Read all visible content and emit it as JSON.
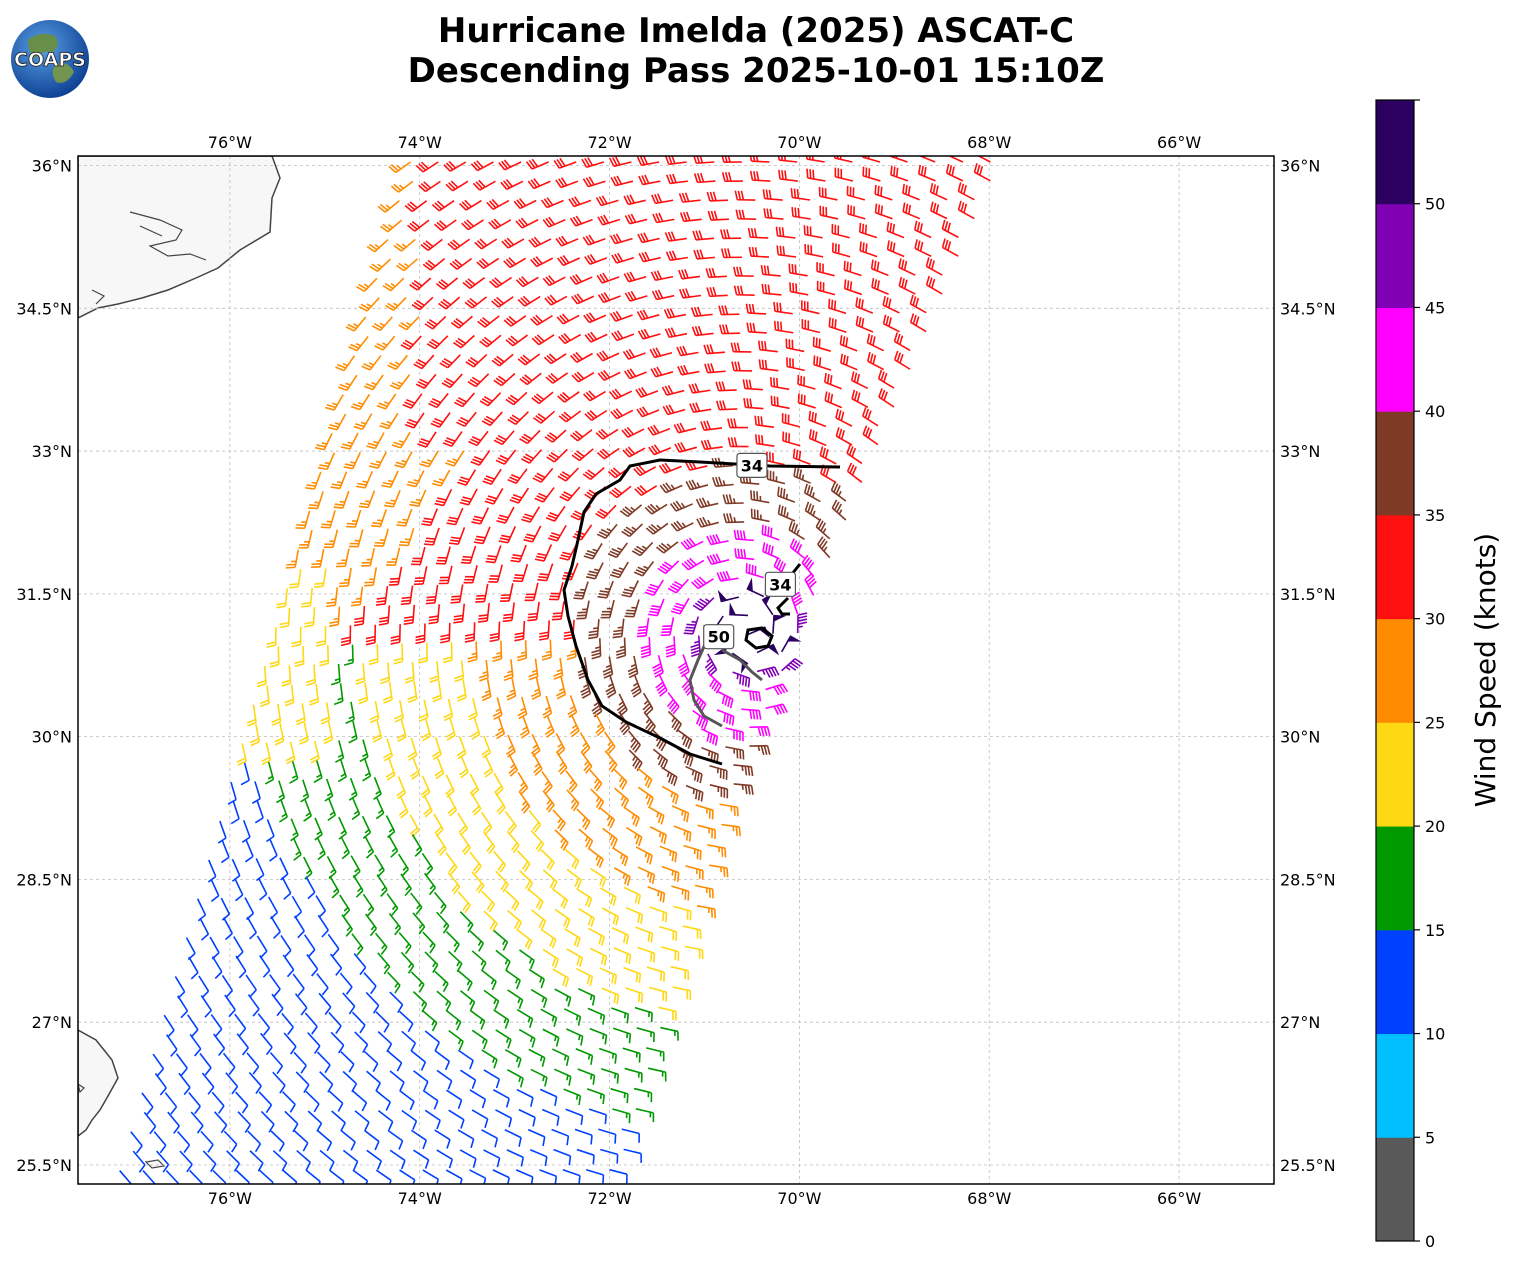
{
  "logo": {
    "text": "COAPS"
  },
  "title": {
    "line1": "Hurricane Imelda (2025) ASCAT-C",
    "line2": "Descending Pass 2025-10-01 15:10Z"
  },
  "map": {
    "lon_range": [
      -77.6,
      -65.0
    ],
    "lat_range": [
      25.3,
      36.1
    ],
    "lon_ticks": [
      {
        "value": -76,
        "label": "76°W"
      },
      {
        "value": -74,
        "label": "74°W"
      },
      {
        "value": -72,
        "label": "72°W"
      },
      {
        "value": -70,
        "label": "70°W"
      },
      {
        "value": -68,
        "label": "68°W"
      },
      {
        "value": -66,
        "label": "66°W"
      }
    ],
    "lat_ticks": [
      {
        "value": 36,
        "label": "36°N"
      },
      {
        "value": 34.5,
        "label": "34.5°N"
      },
      {
        "value": 33,
        "label": "33°N"
      },
      {
        "value": 31.5,
        "label": "31.5°N"
      },
      {
        "value": 30,
        "label": "30°N"
      },
      {
        "value": 28.5,
        "label": "28.5°N"
      },
      {
        "value": 27,
        "label": "27°N"
      },
      {
        "value": 25.5,
        "label": "25.5°N"
      }
    ],
    "grid": true,
    "swath": {
      "corners_lonlat": [
        [
          -74.2,
          36.1
        ],
        [
          -67.8,
          36.1
        ],
        [
          -70.6,
          29.6
        ],
        [
          -71.9,
          25.3
        ],
        [
          -77.3,
          25.3
        ]
      ]
    },
    "storm_center_lonlat": [
      -70.55,
      31.1
    ],
    "contour_labels": [
      {
        "text": "34",
        "lon": -70.5,
        "lat": 32.85
      },
      {
        "text": "34",
        "lon": -70.2,
        "lat": 31.6
      },
      {
        "text": "50",
        "lon": -70.85,
        "lat": 31.05
      }
    ]
  },
  "colorbar": {
    "label": "Wind Speed (knots)",
    "bins": [
      {
        "from": 0,
        "to": 5,
        "color": "#595959"
      },
      {
        "from": 5,
        "to": 10,
        "color": "#00bfff"
      },
      {
        "from": 10,
        "to": 15,
        "color": "#0040ff"
      },
      {
        "from": 15,
        "to": 20,
        "color": "#009900"
      },
      {
        "from": 20,
        "to": 25,
        "color": "#ffd814"
      },
      {
        "from": 25,
        "to": 30,
        "color": "#ff8c00"
      },
      {
        "from": 30,
        "to": 35,
        "color": "#ff1010"
      },
      {
        "from": 35,
        "to": 40,
        "color": "#7f3a26"
      },
      {
        "from": 40,
        "to": 45,
        "color": "#ff00ff"
      },
      {
        "from": 45,
        "to": 50,
        "color": "#8000b3"
      },
      {
        "from": 50,
        "to": 55,
        "color": "#2b0060"
      }
    ],
    "tick_labels": [
      "0",
      "5",
      "10",
      "15",
      "20",
      "25",
      "30",
      "35",
      "40",
      "45",
      "50"
    ]
  }
}
